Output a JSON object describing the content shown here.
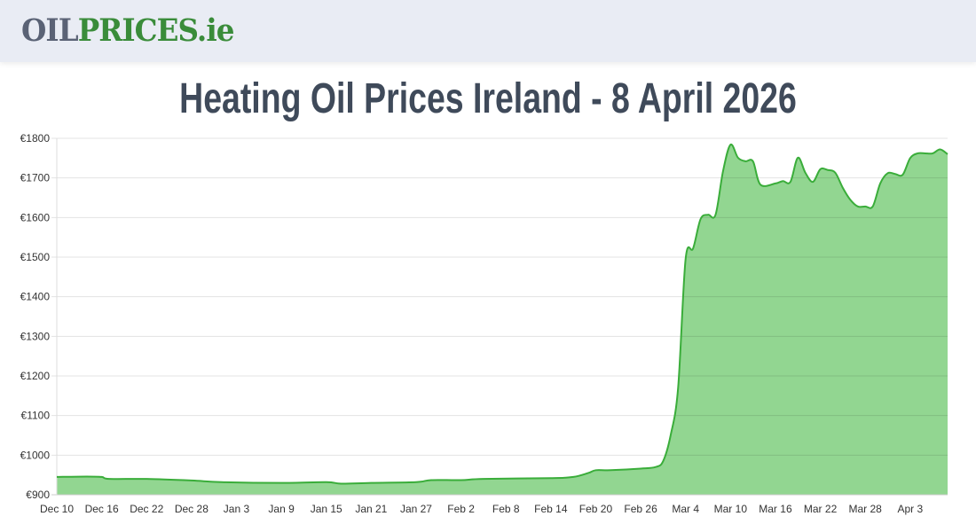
{
  "header": {
    "logo_part1": "OIL",
    "logo_part2": "PRICES.ie"
  },
  "title": "Heating Oil Prices Ireland - 8 April 2026",
  "colors": {
    "line": "#3aad3a",
    "fill": "#92d691",
    "grid": "#e2e2e2",
    "logo_gray": "#5a6275",
    "logo_green": "#3a8c3a"
  },
  "chart_data": {
    "type": "area",
    "title": "",
    "xlabel": "",
    "ylabel": "",
    "ylim": [
      900,
      1800
    ],
    "y_ticks": [
      "€900",
      "€1000",
      "€1100",
      "€1200",
      "€1300",
      "€1400",
      "€1500",
      "€1600",
      "€1700",
      "€1800"
    ],
    "y_tick_values": [
      900,
      1000,
      1100,
      1200,
      1300,
      1400,
      1500,
      1600,
      1700,
      1800
    ],
    "x_range": [
      "2025-12-10",
      "2026-04-08"
    ],
    "x_ticks": [
      "Dec 10",
      "Dec 16",
      "Dec 22",
      "Dec 28",
      "Jan 3",
      "Jan 9",
      "Jan 15",
      "Jan 21",
      "Jan 27",
      "Feb 2",
      "Feb 8",
      "Feb 14",
      "Feb 20",
      "Feb 26",
      "Mar 4",
      "Mar 10",
      "Mar 16",
      "Mar 22",
      "Mar 28",
      "Apr 3"
    ],
    "x_tick_dates": [
      "2025-12-10",
      "2025-12-16",
      "2025-12-22",
      "2025-12-28",
      "2026-01-03",
      "2026-01-09",
      "2026-01-15",
      "2026-01-21",
      "2026-01-27",
      "2026-02-02",
      "2026-02-08",
      "2026-02-14",
      "2026-02-20",
      "2026-02-26",
      "2026-03-04",
      "2026-03-10",
      "2026-03-16",
      "2026-03-22",
      "2026-03-28",
      "2026-04-03"
    ],
    "grid": true,
    "legend": "none",
    "points": [
      [
        "2025-12-10",
        945
      ],
      [
        "2025-12-14",
        946
      ],
      [
        "2025-12-16",
        945
      ],
      [
        "2025-12-17",
        940
      ],
      [
        "2025-12-22",
        940
      ],
      [
        "2025-12-28",
        936
      ],
      [
        "2026-01-01",
        932
      ],
      [
        "2026-01-09",
        930
      ],
      [
        "2026-01-15",
        932
      ],
      [
        "2026-01-17",
        928
      ],
      [
        "2026-01-21",
        930
      ],
      [
        "2026-01-27",
        932
      ],
      [
        "2026-01-29",
        937
      ],
      [
        "2026-02-02",
        937
      ],
      [
        "2026-02-05",
        940
      ],
      [
        "2026-02-14",
        942
      ],
      [
        "2026-02-17",
        945
      ],
      [
        "2026-02-19",
        955
      ],
      [
        "2026-02-20",
        962
      ],
      [
        "2026-02-22",
        962
      ],
      [
        "2026-02-26",
        966
      ],
      [
        "2026-02-28",
        970
      ],
      [
        "2026-03-01",
        985
      ],
      [
        "2026-03-02",
        1050
      ],
      [
        "2026-03-03",
        1170
      ],
      [
        "2026-03-04",
        1495
      ],
      [
        "2026-03-05",
        1522
      ],
      [
        "2026-03-06",
        1596
      ],
      [
        "2026-03-07",
        1607
      ],
      [
        "2026-03-08",
        1607
      ],
      [
        "2026-03-09",
        1717
      ],
      [
        "2026-03-10",
        1784
      ],
      [
        "2026-03-11",
        1751
      ],
      [
        "2026-03-12",
        1742
      ],
      [
        "2026-03-13",
        1742
      ],
      [
        "2026-03-14",
        1683
      ],
      [
        "2026-03-16",
        1686
      ],
      [
        "2026-03-17",
        1692
      ],
      [
        "2026-03-18",
        1690
      ],
      [
        "2026-03-19",
        1751
      ],
      [
        "2026-03-20",
        1713
      ],
      [
        "2026-03-21",
        1690
      ],
      [
        "2026-03-22",
        1722
      ],
      [
        "2026-03-23",
        1720
      ],
      [
        "2026-03-24",
        1713
      ],
      [
        "2026-03-25",
        1675
      ],
      [
        "2026-03-26",
        1645
      ],
      [
        "2026-03-27",
        1628
      ],
      [
        "2026-03-28",
        1628
      ],
      [
        "2026-03-29",
        1628
      ],
      [
        "2026-03-30",
        1686
      ],
      [
        "2026-03-31",
        1712
      ],
      [
        "2026-04-01",
        1710
      ],
      [
        "2026-04-02",
        1708
      ],
      [
        "2026-04-03",
        1750
      ],
      [
        "2026-04-04",
        1762
      ],
      [
        "2026-04-05",
        1762
      ],
      [
        "2026-04-06",
        1762
      ],
      [
        "2026-04-07",
        1772
      ],
      [
        "2026-04-08",
        1760
      ]
    ]
  }
}
